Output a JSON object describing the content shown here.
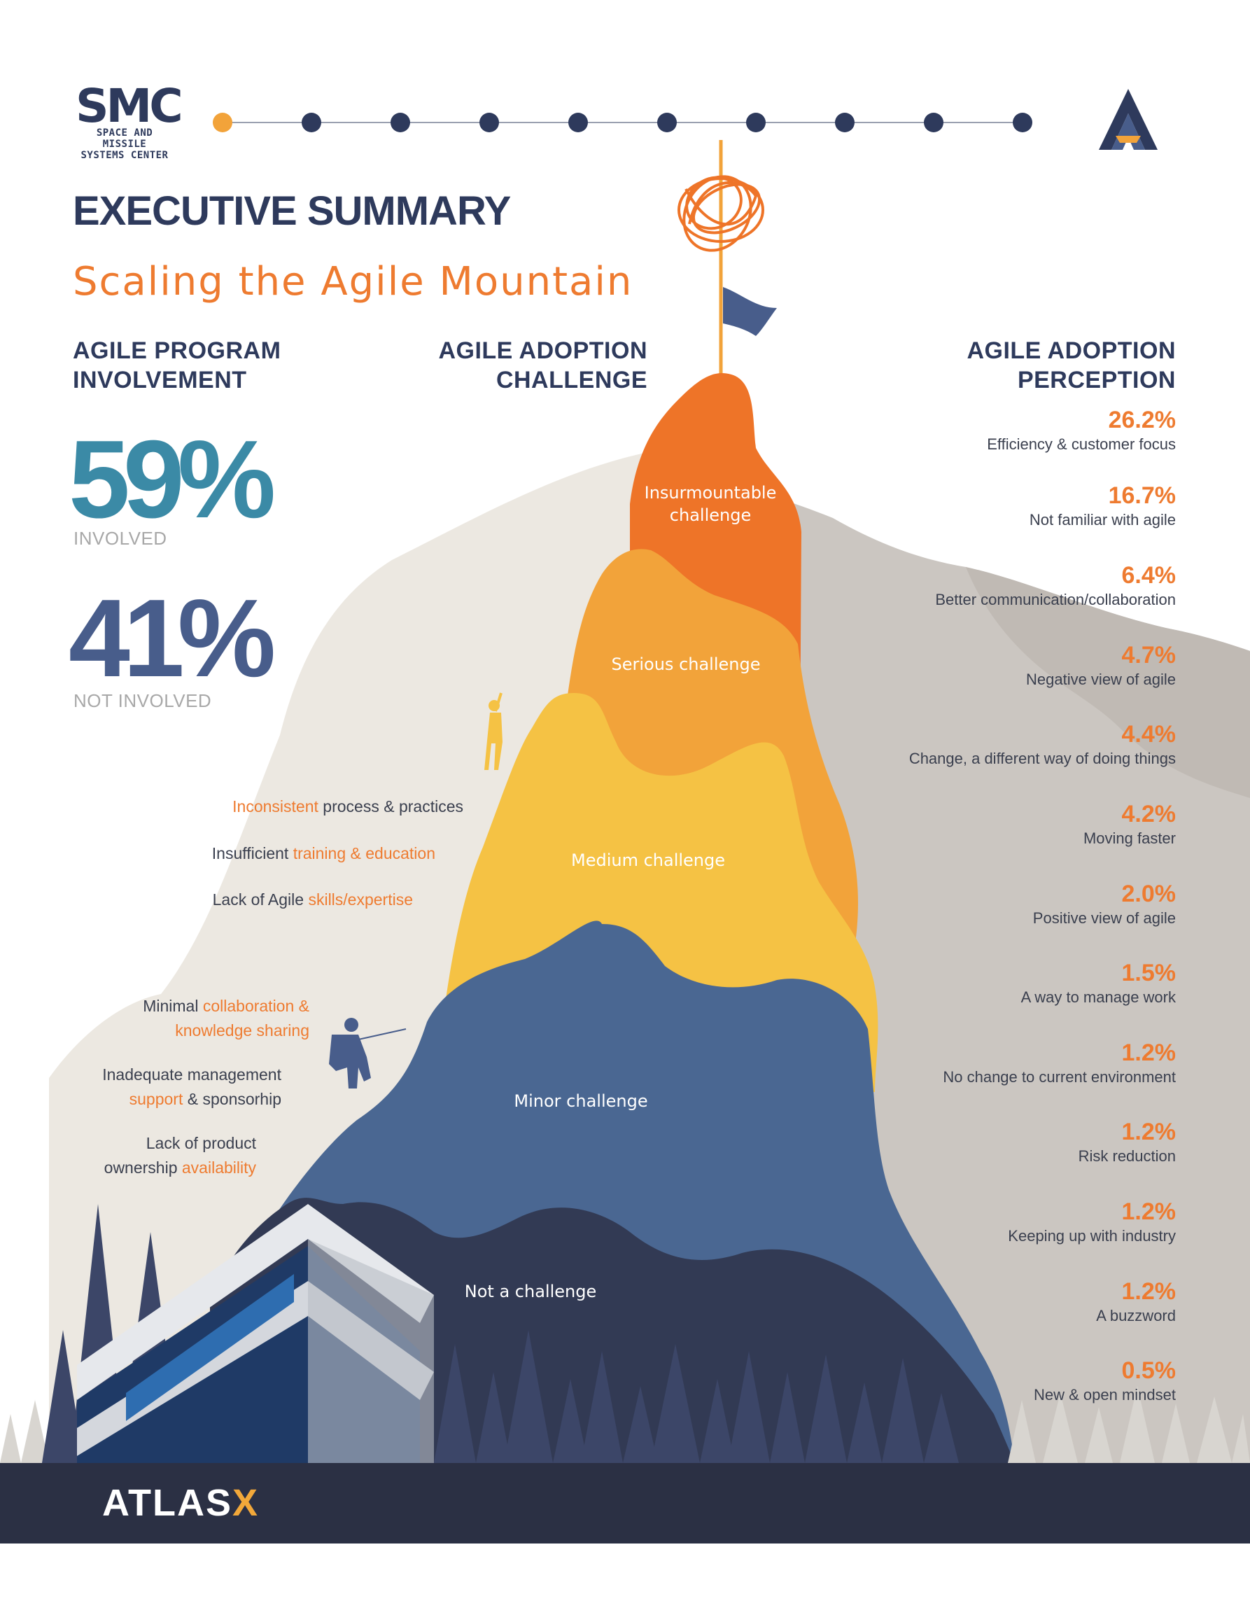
{
  "header": {
    "logo_left": {
      "mark": "SMC",
      "line1": "SPACE AND MISSILE",
      "line2": "SYSTEMS CENTER"
    },
    "progress_dots": {
      "total": 10,
      "active_index": 0,
      "active_color": "#f2a33a",
      "inactive_color": "#2e3a5c"
    },
    "logo_right_icon": "atlas-a-icon"
  },
  "title": "EXECUTIVE SUMMARY",
  "subtitle": "Scaling the Agile Mountain",
  "involvement": {
    "heading": "AGILE PROGRAM INVOLVEMENT",
    "involved": {
      "value": "59%",
      "label": "INVOLVED"
    },
    "not_involved": {
      "value": "41%",
      "label": "NOT INVOLVED"
    }
  },
  "challenge": {
    "heading": "AGILE ADOPTION CHALLENGE",
    "bands": [
      {
        "label": "Insurmountable challenge",
        "color": "#ee7428"
      },
      {
        "label": "Serious challenge",
        "color": "#f2a33a"
      },
      {
        "label": "Medium challenge",
        "color": "#f5c244"
      },
      {
        "label": "Minor challenge",
        "color": "#4a6792"
      },
      {
        "label": "Not a challenge",
        "color": "#323a54"
      }
    ],
    "reasons": [
      {
        "pre": "",
        "hl": "Inconsistent",
        "post": " process & practices"
      },
      {
        "pre": "Insufficient ",
        "hl": "training & education",
        "post": ""
      },
      {
        "pre": "Lack of Agile ",
        "hl": "skills/expertise",
        "post": ""
      },
      {
        "pre": "Minimal ",
        "hl": "collaboration & knowledge sharing",
        "post": ""
      },
      {
        "pre": "Inadequate management ",
        "hl": "support",
        "post": " & sponsorhip"
      },
      {
        "pre": "Lack of product ownership ",
        "hl": "availability",
        "post": ""
      }
    ]
  },
  "perception": {
    "heading": "AGILE ADOPTION PERCEPTION",
    "items": [
      {
        "value": "26.2%",
        "label": "Efficiency & customer focus"
      },
      {
        "value": "16.7%",
        "label": "Not familiar with agile"
      },
      {
        "value": "6.4%",
        "label": "Better communication/collaboration"
      },
      {
        "value": "4.7%",
        "label": "Negative view of agile"
      },
      {
        "value": "4.4%",
        "label": "Change, a different way of doing things"
      },
      {
        "value": "4.2%",
        "label": "Moving faster"
      },
      {
        "value": "2.0%",
        "label": "Positive view of agile"
      },
      {
        "value": "1.5%",
        "label": "A way to manage work"
      },
      {
        "value": "1.2%",
        "label": "No change to current environment"
      },
      {
        "value": "1.2%",
        "label": "Risk reduction"
      },
      {
        "value": "1.2%",
        "label": "Keeping up with industry"
      },
      {
        "value": "1.2%",
        "label": "A buzzword"
      },
      {
        "value": "0.5%",
        "label": "New & open mindset"
      }
    ]
  },
  "footer": {
    "brand_main": "ATLAS",
    "brand_accent": "X"
  },
  "colors": {
    "navy": "#2e3a5c",
    "orange": "#ee7b30",
    "teal": "#3b8aa6",
    "slate": "#485d8b"
  }
}
